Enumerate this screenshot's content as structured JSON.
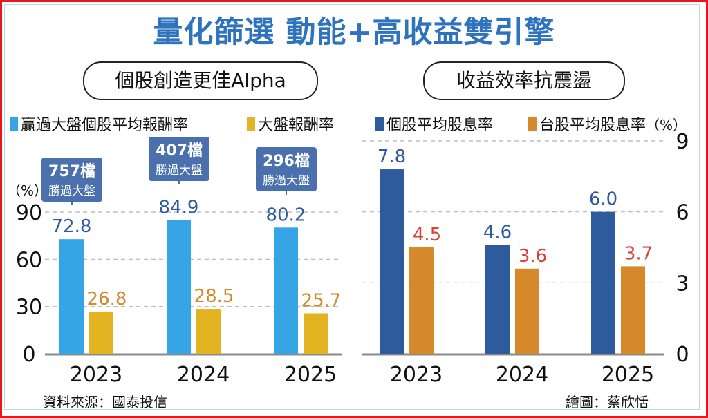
{
  "title": "量化篩選 動能+高收益雙引擎",
  "credit_source": "資料來源：國泰投信",
  "credit_drawing": "繪圖：蔡欣恬",
  "chart_data": [
    {
      "type": "bar",
      "title": "個股創造更佳Alpha",
      "unit_label": "（%）",
      "categories": [
        "2023",
        "2024",
        "2025"
      ],
      "series": [
        {
          "name": "贏過大盤個股平均報酬率",
          "color": "#35a5e6",
          "label_color": "#2d5aa0",
          "values": [
            72.8,
            84.9,
            80.2
          ]
        },
        {
          "name": "大盤報酬率",
          "color": "#e3b321",
          "label_color": "#d08a2a",
          "values": [
            26.8,
            28.5,
            25.7
          ]
        }
      ],
      "callouts": [
        {
          "count": "757檔",
          "text": "勝過大盤"
        },
        {
          "count": "407檔",
          "text": "勝過大盤"
        },
        {
          "count": "296檔",
          "text": "勝過大盤"
        }
      ],
      "yticks": [
        0,
        30,
        60,
        90
      ],
      "ylim": [
        0,
        90
      ],
      "y_axis_side": "left",
      "grid": true
    },
    {
      "type": "bar",
      "title": "收益效率抗震盪",
      "unit_label": "（%）",
      "categories": [
        "2023",
        "2024",
        "2025"
      ],
      "series": [
        {
          "name": "個股平均股息率",
          "color": "#2e5a9e",
          "label_color": "#2d5aa0",
          "values": [
            7.8,
            4.6,
            6.0
          ]
        },
        {
          "name": "台股平均股息率",
          "color": "#d6892a",
          "label_color": "#d9443a",
          "values": [
            4.5,
            3.6,
            3.7
          ]
        }
      ],
      "yticks": [
        0,
        3,
        6,
        9
      ],
      "ylim": [
        0,
        9
      ],
      "y_axis_side": "right",
      "grid": true
    }
  ]
}
